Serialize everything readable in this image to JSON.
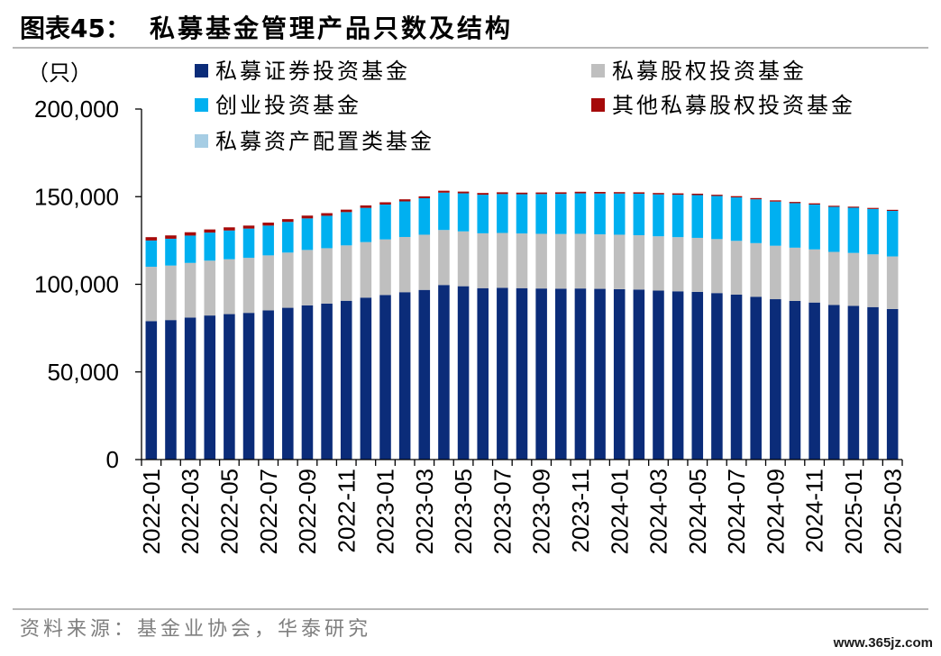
{
  "chart_data": {
    "type": "bar",
    "stacked": true,
    "figure_label": "图表45：",
    "title": "私募基金管理产品只数及结构",
    "ylabel": "（只）",
    "ylim": [
      0,
      200000
    ],
    "yticks": [
      0,
      50000,
      100000,
      150000,
      200000
    ],
    "grid": false,
    "legend": "top",
    "categories": [
      "2022-01",
      "2022-02",
      "2022-03",
      "2022-04",
      "2022-05",
      "2022-06",
      "2022-07",
      "2022-08",
      "2022-09",
      "2022-10",
      "2022-11",
      "2022-12",
      "2023-01",
      "2023-02",
      "2023-03",
      "2023-04",
      "2023-05",
      "2023-06",
      "2023-07",
      "2023-08",
      "2023-09",
      "2023-10",
      "2023-11",
      "2023-12",
      "2024-01",
      "2024-02",
      "2024-03",
      "2024-04",
      "2024-05",
      "2024-06",
      "2024-07",
      "2024-08",
      "2024-09",
      "2024-10",
      "2024-11",
      "2024-12",
      "2025-01",
      "2025-02",
      "2025-03"
    ],
    "xtick_labels": [
      "2022-01",
      "2022-03",
      "2022-05",
      "2022-07",
      "2022-09",
      "2022-11",
      "2023-01",
      "2023-03",
      "2023-05",
      "2023-07",
      "2023-09",
      "2023-11",
      "2024-01",
      "2024-03",
      "2024-05",
      "2024-07",
      "2024-09",
      "2024-11",
      "2025-01",
      "2025-03"
    ],
    "series": [
      {
        "name": "私募证券投资基金",
        "color": "#0b2c79",
        "values": [
          79000,
          79600,
          81000,
          82200,
          83000,
          83700,
          85100,
          86600,
          88000,
          89000,
          90600,
          92400,
          93900,
          95500,
          96800,
          99600,
          98900,
          97800,
          98000,
          97800,
          97600,
          97500,
          97600,
          97400,
          97200,
          97000,
          96400,
          96000,
          95700,
          95000,
          94100,
          92900,
          91500,
          90500,
          89600,
          88200,
          87700,
          87000,
          85900
        ]
      },
      {
        "name": "私募股权投资基金",
        "color": "#bfbfbf",
        "values": [
          31000,
          31100,
          31200,
          31300,
          31300,
          31400,
          31400,
          31500,
          31600,
          31600,
          31600,
          31700,
          31700,
          31500,
          31500,
          31400,
          31300,
          31300,
          31300,
          31200,
          31200,
          31200,
          31200,
          31100,
          31100,
          31000,
          31000,
          30900,
          30800,
          30800,
          30700,
          30600,
          30500,
          30400,
          30300,
          30300,
          30200,
          30100,
          30000
        ]
      },
      {
        "name": "创业投资基金",
        "color": "#00b0f0",
        "values": [
          15000,
          15300,
          15600,
          16000,
          16400,
          16700,
          17000,
          17500,
          18000,
          18500,
          19000,
          19500,
          19900,
          20300,
          20800,
          21300,
          21700,
          22000,
          22200,
          22400,
          22700,
          22900,
          23100,
          23300,
          23500,
          23700,
          23900,
          24200,
          24400,
          24600,
          24800,
          25000,
          25200,
          25400,
          25600,
          25700,
          25800,
          25900,
          26000
        ]
      },
      {
        "name": "其他私募股权投资基金",
        "color": "#a50a0a",
        "values": [
          1900,
          1900,
          1900,
          1800,
          1800,
          1700,
          1700,
          1600,
          1600,
          1500,
          1400,
          1400,
          1300,
          1200,
          1100,
          1100,
          1000,
          1000,
          1000,
          900,
          900,
          900,
          900,
          900,
          800,
          800,
          800,
          800,
          800,
          700,
          700,
          700,
          700,
          700,
          700,
          600,
          600,
          600,
          600
        ]
      },
      {
        "name": "私募资产配置类基金",
        "color": "#a6cde4",
        "values": [
          10,
          10,
          10,
          10,
          10,
          10,
          10,
          10,
          10,
          10,
          10,
          10,
          10,
          10,
          10,
          10,
          10,
          10,
          10,
          10,
          10,
          10,
          10,
          10,
          10,
          10,
          10,
          10,
          10,
          10,
          10,
          10,
          10,
          10,
          10,
          10,
          10,
          10,
          10
        ]
      }
    ]
  },
  "source": "资料来源：基金业协会，华泰研究",
  "watermark": "www.365jz.com"
}
